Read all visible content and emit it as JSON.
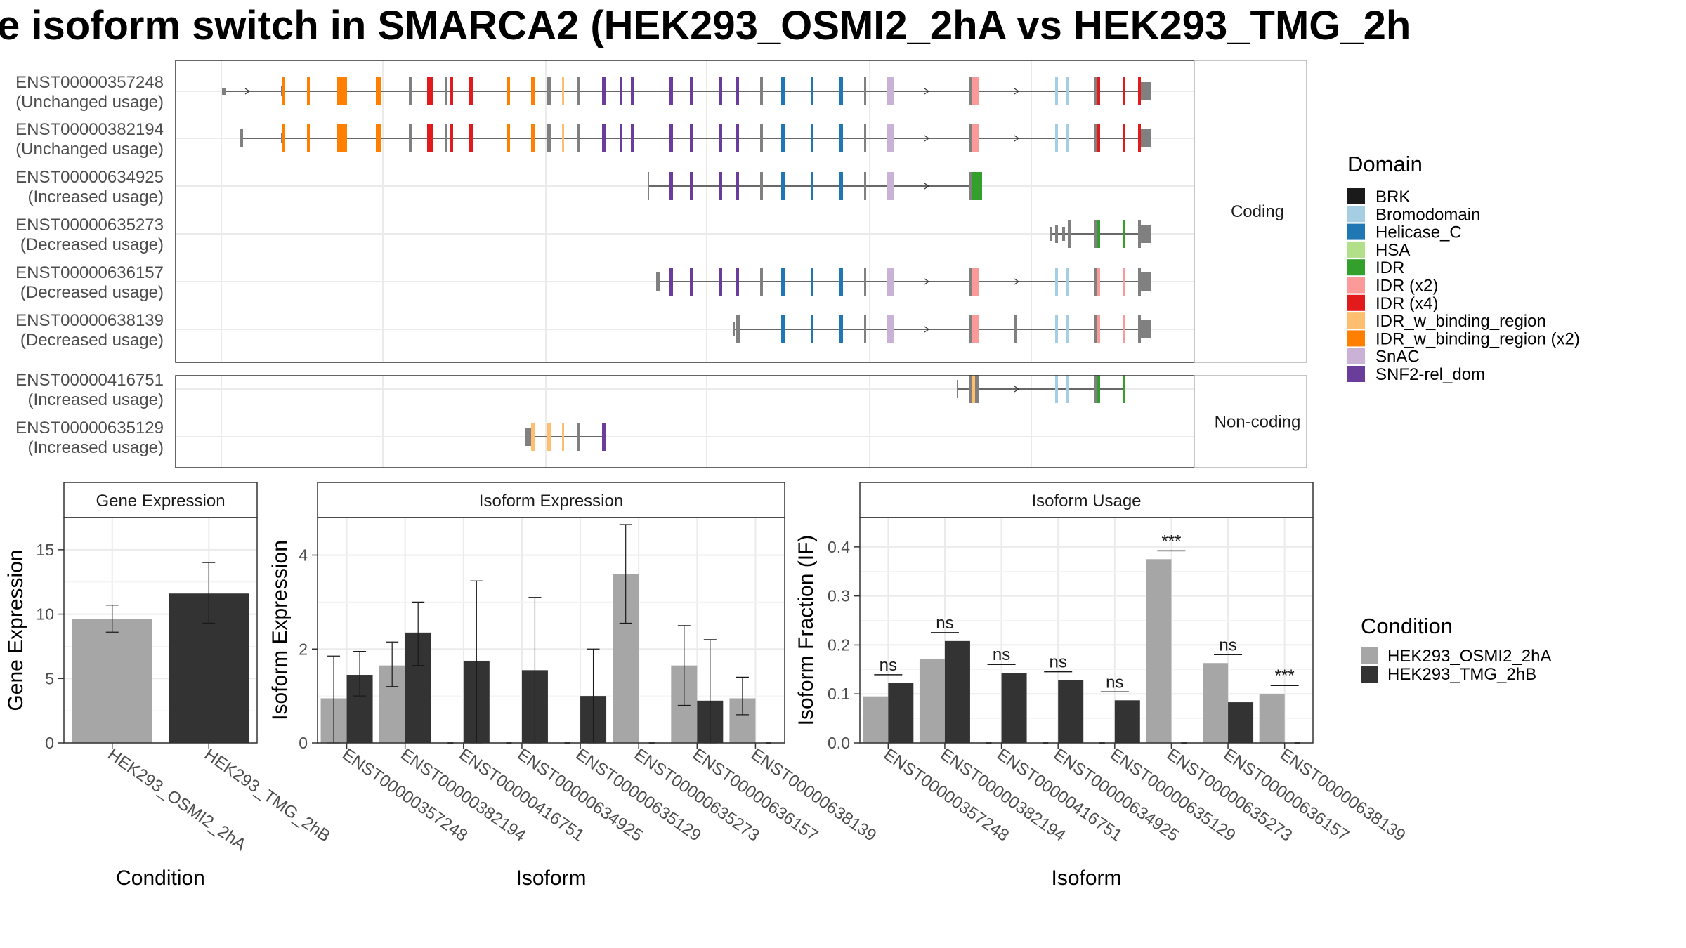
{
  "title": "e isoform switch in SMARCA2 (HEK293_OSMI2_2hA vs HEK293_TMG_2h",
  "colors": {
    "BRK": "#1a1a1a",
    "Bromodomain": "#a6cee3",
    "Helicase_C": "#1f78b4",
    "HSA": "#b2df8a",
    "IDR": "#33a02c",
    "IDR (x2)": "#fb9a99",
    "IDR (x4)": "#e31a1c",
    "IDR_w_binding_region": "#fdbf6f",
    "IDR_w_binding_region (x2)": "#ff7f00",
    "SnAC": "#cab2d6",
    "SNF2-rel_dom": "#6a3d9a",
    "exon": "#808080",
    "cond1": "#a6a6a6",
    "cond2": "#333333"
  },
  "chart_data": [
    {
      "type": "transcript_structure",
      "facets": [
        {
          "label": "Coding",
          "transcripts": [
            {
              "id": "ENST00000357248",
              "usage": "(Unchanged usage)"
            },
            {
              "id": "ENST00000382194",
              "usage": "(Unchanged usage)"
            },
            {
              "id": "ENST00000634925",
              "usage": "(Increased usage)"
            },
            {
              "id": "ENST00000635273",
              "usage": "(Decreased usage)"
            },
            {
              "id": "ENST00000636157",
              "usage": "(Decreased usage)"
            },
            {
              "id": "ENST00000638139",
              "usage": "(Decreased usage)"
            }
          ]
        },
        {
          "label": "Non-coding",
          "transcripts": [
            {
              "id": "ENST00000416751",
              "usage": "(Increased usage)"
            },
            {
              "id": "ENST00000635129",
              "usage": "(Increased usage)"
            }
          ]
        }
      ],
      "legend": {
        "title": "Domain",
        "entries": [
          "BRK",
          "Bromodomain",
          "Helicase_C",
          "HSA",
          "IDR",
          "IDR (x2)",
          "IDR (x4)",
          "IDR_w_binding_region",
          "IDR_w_binding_region (x2)",
          "SnAC",
          "SNF2-rel_dom"
        ]
      }
    },
    {
      "type": "bar",
      "panel": "Gene Expression",
      "xlabel": "Condition",
      "ylabel": "Gene Expression",
      "ylim": [
        0,
        17.5
      ],
      "yticks": [
        0,
        5,
        10,
        15
      ],
      "categories": [
        "HEK293_OSMI2_2hA",
        "HEK293_TMG_2hB"
      ],
      "values": [
        9.6,
        11.6
      ],
      "error": [
        [
          8.6,
          10.7
        ],
        [
          9.3,
          14.0
        ]
      ]
    },
    {
      "type": "bar",
      "panel": "Isoform Expression",
      "xlabel": "Isoform",
      "ylabel": "Isoform Expression",
      "ylim": [
        0,
        4.8
      ],
      "yticks": [
        0,
        2,
        4
      ],
      "categories": [
        "ENST00000357248",
        "ENST00000382194",
        "ENST00000416751",
        "ENST00000634925",
        "ENST00000635129",
        "ENST00000635273",
        "ENST00000636157",
        "ENST00000638139"
      ],
      "series": [
        {
          "name": "HEK293_OSMI2_2hA",
          "values": [
            0.95,
            1.65,
            0,
            0,
            0,
            3.6,
            1.65,
            0.95
          ],
          "error": [
            [
              0,
              1.85
            ],
            [
              1.2,
              2.15
            ],
            null,
            null,
            null,
            [
              2.55,
              4.65
            ],
            [
              0.8,
              2.5
            ],
            [
              0.6,
              1.4
            ]
          ]
        },
        {
          "name": "HEK293_TMG_2hB",
          "values": [
            1.45,
            2.35,
            1.75,
            1.55,
            1.0,
            0,
            0.9,
            0
          ],
          "error": [
            [
              1.0,
              1.95
            ],
            [
              1.65,
              3.0
            ],
            [
              0,
              3.45
            ],
            [
              0,
              3.1
            ],
            [
              0,
              2.0
            ],
            null,
            [
              0,
              2.2
            ],
            null
          ]
        }
      ]
    },
    {
      "type": "bar",
      "panel": "Isoform Usage",
      "xlabel": "Isoform",
      "ylabel": "Isoform Fraction (IF)",
      "ylim": [
        0,
        0.46
      ],
      "yticks": [
        "0.0",
        "0.1",
        "0.2",
        "0.3",
        "0.4"
      ],
      "categories": [
        "ENST00000357248",
        "ENST00000382194",
        "ENST00000416751",
        "ENST00000634925",
        "ENST00000635129",
        "ENST00000635273",
        "ENST00000636157",
        "ENST00000638139"
      ],
      "series": [
        {
          "name": "HEK293_OSMI2_2hA",
          "values": [
            0.095,
            0.172,
            0,
            0,
            0,
            0.375,
            0.163,
            0.1
          ]
        },
        {
          "name": "HEK293_TMG_2hB",
          "values": [
            0.122,
            0.208,
            0.143,
            0.128,
            0.087,
            0,
            0.083,
            0
          ]
        }
      ],
      "significance": [
        "ns",
        "ns",
        "ns",
        "ns",
        "ns",
        "***",
        "ns",
        "***"
      ],
      "legend": {
        "title": "Condition",
        "entries": [
          "HEK293_OSMI2_2hA",
          "HEK293_TMG_2hB"
        ]
      }
    }
  ]
}
